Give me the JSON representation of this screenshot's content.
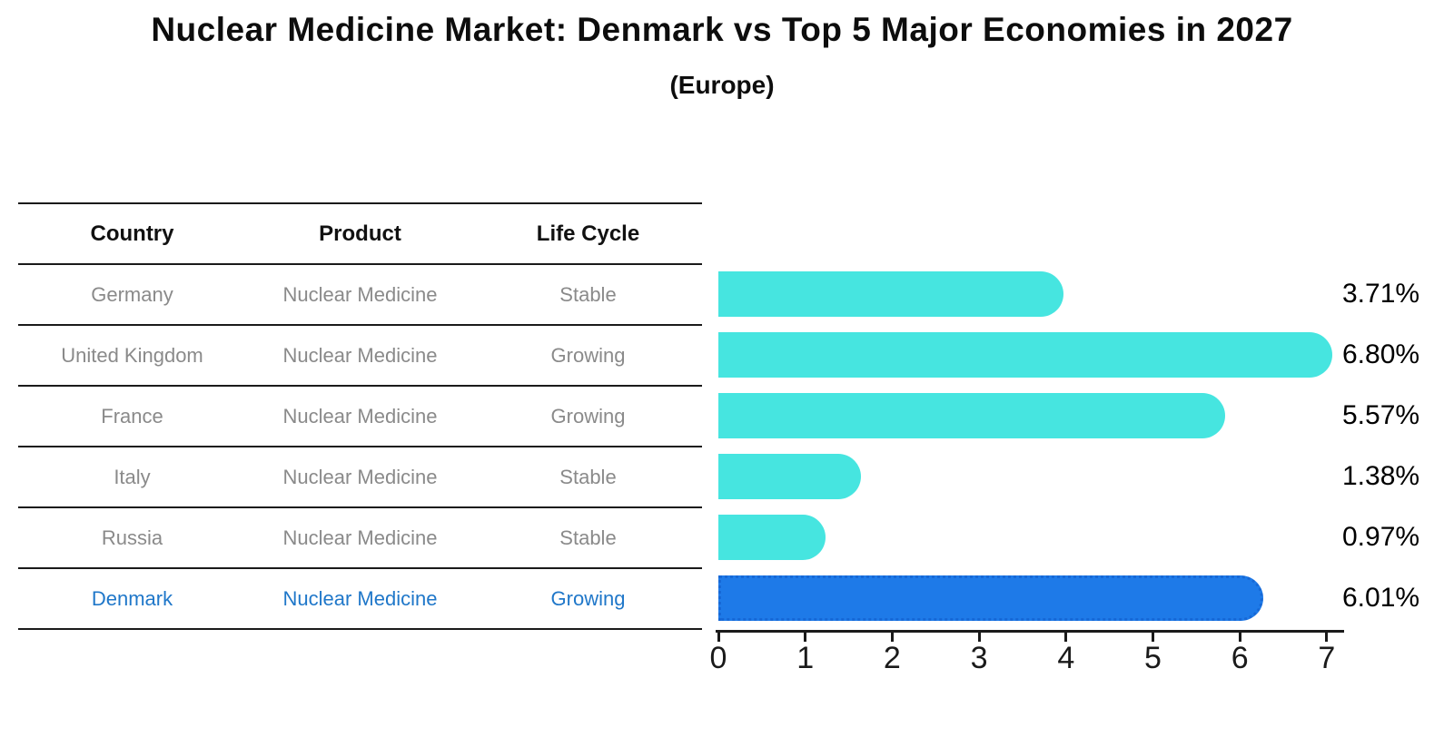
{
  "title": "Nuclear Medicine Market: Denmark vs Top 5 Major Economies in 2027",
  "subtitle": "(Europe)",
  "table": {
    "headers": [
      "Country",
      "Product",
      "Life Cycle"
    ],
    "rows": [
      {
        "country": "Germany",
        "product": "Nuclear Medicine",
        "life_cycle": "Stable",
        "highlight": false
      },
      {
        "country": "United Kingdom",
        "product": "Nuclear Medicine",
        "life_cycle": "Growing",
        "highlight": false
      },
      {
        "country": "France",
        "product": "Nuclear Medicine",
        "life_cycle": "Growing",
        "highlight": false
      },
      {
        "country": "Italy",
        "product": "Nuclear Medicine",
        "life_cycle": "Stable",
        "highlight": false
      },
      {
        "country": "Russia",
        "product": "Nuclear Medicine",
        "life_cycle": "Stable",
        "highlight": false
      },
      {
        "country": "Denmark",
        "product": "Nuclear Medicine",
        "life_cycle": "Growing",
        "highlight": true
      }
    ]
  },
  "chart_data": {
    "type": "bar",
    "orientation": "horizontal",
    "title": "Nuclear Medicine Market: Denmark vs Top 5 Major Economies in 2027 (Europe)",
    "categories": [
      "Germany",
      "United Kingdom",
      "France",
      "Italy",
      "Russia",
      "Denmark"
    ],
    "values": [
      3.71,
      6.8,
      5.57,
      1.38,
      0.97,
      6.01
    ],
    "value_labels": [
      "3.71%",
      "6.80%",
      "5.57%",
      "1.38%",
      "0.97%",
      "6.01%"
    ],
    "xlabel": "",
    "ylabel": "",
    "xlim": [
      0,
      7.2
    ],
    "x_ticks": [
      "0",
      "1",
      "2",
      "3",
      "4",
      "5",
      "6",
      "7"
    ],
    "grid": false,
    "legend": false,
    "bar_color": "#46E5E0",
    "highlight_index": 5,
    "highlight_color": "#1E7AE8",
    "highlight_border_color": "#1668D6"
  },
  "colors": {
    "background": "#FFFFFF",
    "text": "#111111",
    "muted_text": "#8A8A8A",
    "highlight_text": "#1F77C9",
    "line": "#1A1A1A"
  }
}
